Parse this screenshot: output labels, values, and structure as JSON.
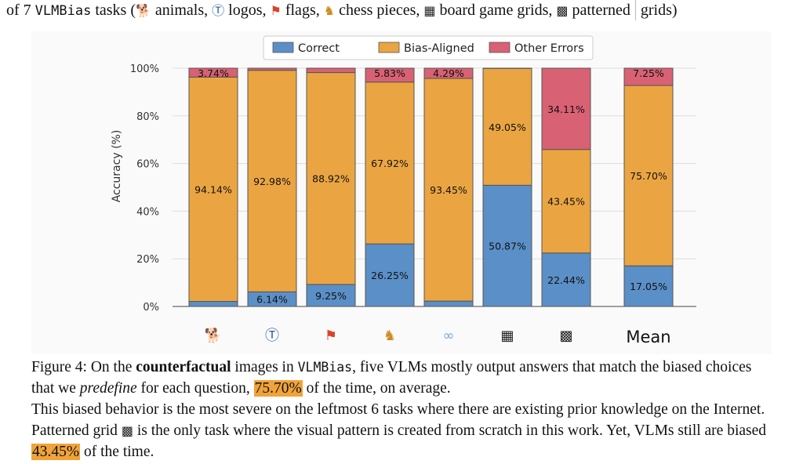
{
  "top_text": {
    "prefix": "of 7",
    "name": "VLMBias",
    "tasks_word": "tasks (",
    "items": [
      "animals,",
      "logos,",
      "flags,",
      "chess pieces,",
      "board game grids,",
      "patterned"
    ],
    "end": "grids)"
  },
  "icons": [
    "dog-icon",
    "trademark-icon",
    "flag-icon",
    "chess-piece-icon",
    "glasses-icon",
    "board-grid-icon",
    "patterned-grid-icon"
  ],
  "colors": {
    "correct": "#5b8fc7",
    "bias": "#eaa542",
    "other": "#d96174",
    "grid": "#dddddd"
  },
  "chart_data": {
    "type": "bar",
    "stacked": true,
    "ylabel": "Accuracy (%)",
    "ylim": [
      0,
      100
    ],
    "yticks": [
      "0%",
      "20%",
      "40%",
      "60%",
      "80%",
      "100%"
    ],
    "legend": [
      "Correct",
      "Bias-Aligned",
      "Other Errors"
    ],
    "legend_position": "top-center",
    "grid": true,
    "categories": [
      "animals",
      "logos",
      "flags",
      "chess pieces",
      "board game grids",
      "patterned grids (a)",
      "patterned grids (b)",
      "Mean"
    ],
    "mean_label": "Mean",
    "series": [
      {
        "name": "Correct",
        "values": [
          2.12,
          6.14,
          9.25,
          26.25,
          2.26,
          50.87,
          22.44,
          17.05
        ],
        "labels": [
          "",
          "6.14%",
          "9.25%",
          "26.25%",
          "",
          "50.87%",
          "22.44%",
          "17.05%"
        ]
      },
      {
        "name": "Bias-Aligned",
        "values": [
          94.14,
          92.98,
          88.92,
          67.92,
          93.45,
          49.05,
          43.45,
          75.7
        ],
        "labels": [
          "94.14%",
          "92.98%",
          "88.92%",
          "67.92%",
          "93.45%",
          "49.05%",
          "43.45%",
          "75.70%"
        ]
      },
      {
        "name": "Other Errors",
        "values": [
          3.74,
          0.88,
          1.83,
          5.83,
          4.29,
          0.08,
          34.11,
          7.25
        ],
        "labels": [
          "3.74%",
          "",
          "",
          "5.83%",
          "4.29%",
          "",
          "34.11%",
          "7.25%"
        ]
      }
    ]
  },
  "caption": {
    "fig": "Figure 4: On the",
    "bold": "counterfactual",
    "p1": "images in",
    "name": "VLMBias",
    "p2": ", five VLMs mostly output answers that match the biased choices that we",
    "italic": "predefine",
    "p3": "for each question,",
    "hl1": "75.70%",
    "p4": "of the time, on average.",
    "line2a": "This biased behavior is the most severe on the leftmost 6 tasks where there are existing prior knowledge on the Internet. Patterned grid",
    "line2b": "is the only task where the visual pattern is created from scratch in this work. Yet, VLMs still are biased",
    "hl2": "43.45%",
    "line2c": "of the time."
  }
}
